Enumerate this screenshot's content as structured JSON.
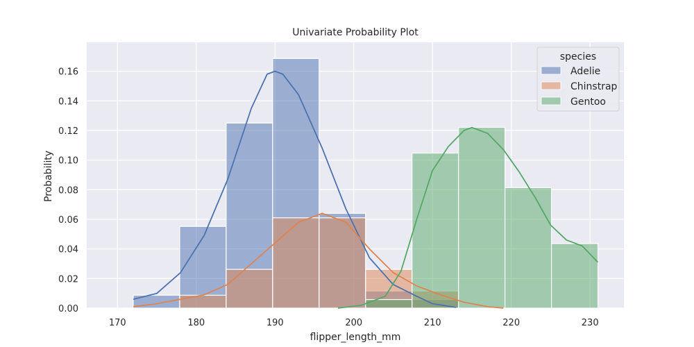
{
  "chart_data": {
    "type": "histogram",
    "title": "Univariate Probability Plot",
    "xlabel": "flipper_length_mm",
    "ylabel": "Probability",
    "xlim": [
      166.1,
      234.3
    ],
    "ylim": [
      0,
      0.1795
    ],
    "xticks": [
      170,
      180,
      190,
      200,
      210,
      220,
      230
    ],
    "xtick_labels": [
      "170",
      "180",
      "190",
      "200",
      "210",
      "220",
      "230"
    ],
    "yticks": [
      0.0,
      0.02,
      0.04,
      0.06,
      0.08,
      0.1,
      0.12,
      0.14,
      0.16
    ],
    "ytick_labels": [
      "0.00",
      "0.02",
      "0.04",
      "0.06",
      "0.08",
      "0.10",
      "0.12",
      "0.14",
      "0.16"
    ],
    "grid": true,
    "background": "#eaeaf2",
    "legend": {
      "title": "species",
      "position": "top-right"
    },
    "bin_edges": [
      172.0,
      177.9,
      183.8,
      189.7,
      195.6,
      201.5,
      207.4,
      213.3,
      219.2,
      225.1,
      231.0
    ],
    "series": [
      {
        "name": "Adelie",
        "color": "#4c72b0",
        "bars": [
          0.0087,
          0.0552,
          0.125,
          0.1686,
          0.064,
          0.0116,
          0.0058,
          0,
          0,
          0
        ],
        "kde": [
          [
            172,
            0.006
          ],
          [
            175,
            0.01
          ],
          [
            178,
            0.024
          ],
          [
            181,
            0.049
          ],
          [
            184,
            0.087
          ],
          [
            187,
            0.135
          ],
          [
            189,
            0.158
          ],
          [
            190,
            0.16
          ],
          [
            191,
            0.158
          ],
          [
            193,
            0.144
          ],
          [
            196,
            0.108
          ],
          [
            199,
            0.067
          ],
          [
            202,
            0.034
          ],
          [
            205,
            0.016
          ],
          [
            208,
            0.008
          ],
          [
            210,
            0.003
          ],
          [
            213,
            0.0005
          ]
        ]
      },
      {
        "name": "Chinstrap",
        "color": "#dd8452",
        "bars": [
          0,
          0.0087,
          0.0262,
          0.061,
          0.061,
          0.0262,
          0.0116,
          0,
          0,
          0
        ],
        "kde": [
          [
            172,
            0.001
          ],
          [
            175,
            0.003
          ],
          [
            178,
            0.006
          ],
          [
            181,
            0.009
          ],
          [
            184,
            0.016
          ],
          [
            187,
            0.03
          ],
          [
            190,
            0.044
          ],
          [
            193,
            0.058
          ],
          [
            196,
            0.064
          ],
          [
            199,
            0.058
          ],
          [
            202,
            0.04
          ],
          [
            205,
            0.024
          ],
          [
            208,
            0.015
          ],
          [
            211,
            0.009
          ],
          [
            214,
            0.004
          ],
          [
            217,
            0.001
          ],
          [
            219,
            0.0
          ]
        ]
      },
      {
        "name": "Gentoo",
        "color": "#55a868",
        "bars": [
          0,
          0,
          0,
          0,
          0,
          0.0058,
          0.1047,
          0.1221,
          0.0814,
          0.0436
        ],
        "kde": [
          [
            198,
            0.0
          ],
          [
            201,
            0.002
          ],
          [
            204,
            0.008
          ],
          [
            206,
            0.025
          ],
          [
            208,
            0.06
          ],
          [
            210,
            0.093
          ],
          [
            212,
            0.109
          ],
          [
            214,
            0.12
          ],
          [
            215,
            0.122
          ],
          [
            217,
            0.118
          ],
          [
            219,
            0.107
          ],
          [
            221,
            0.092
          ],
          [
            223,
            0.075
          ],
          [
            225,
            0.056
          ],
          [
            227,
            0.046
          ],
          [
            229,
            0.042
          ],
          [
            231,
            0.031
          ]
        ]
      }
    ]
  }
}
